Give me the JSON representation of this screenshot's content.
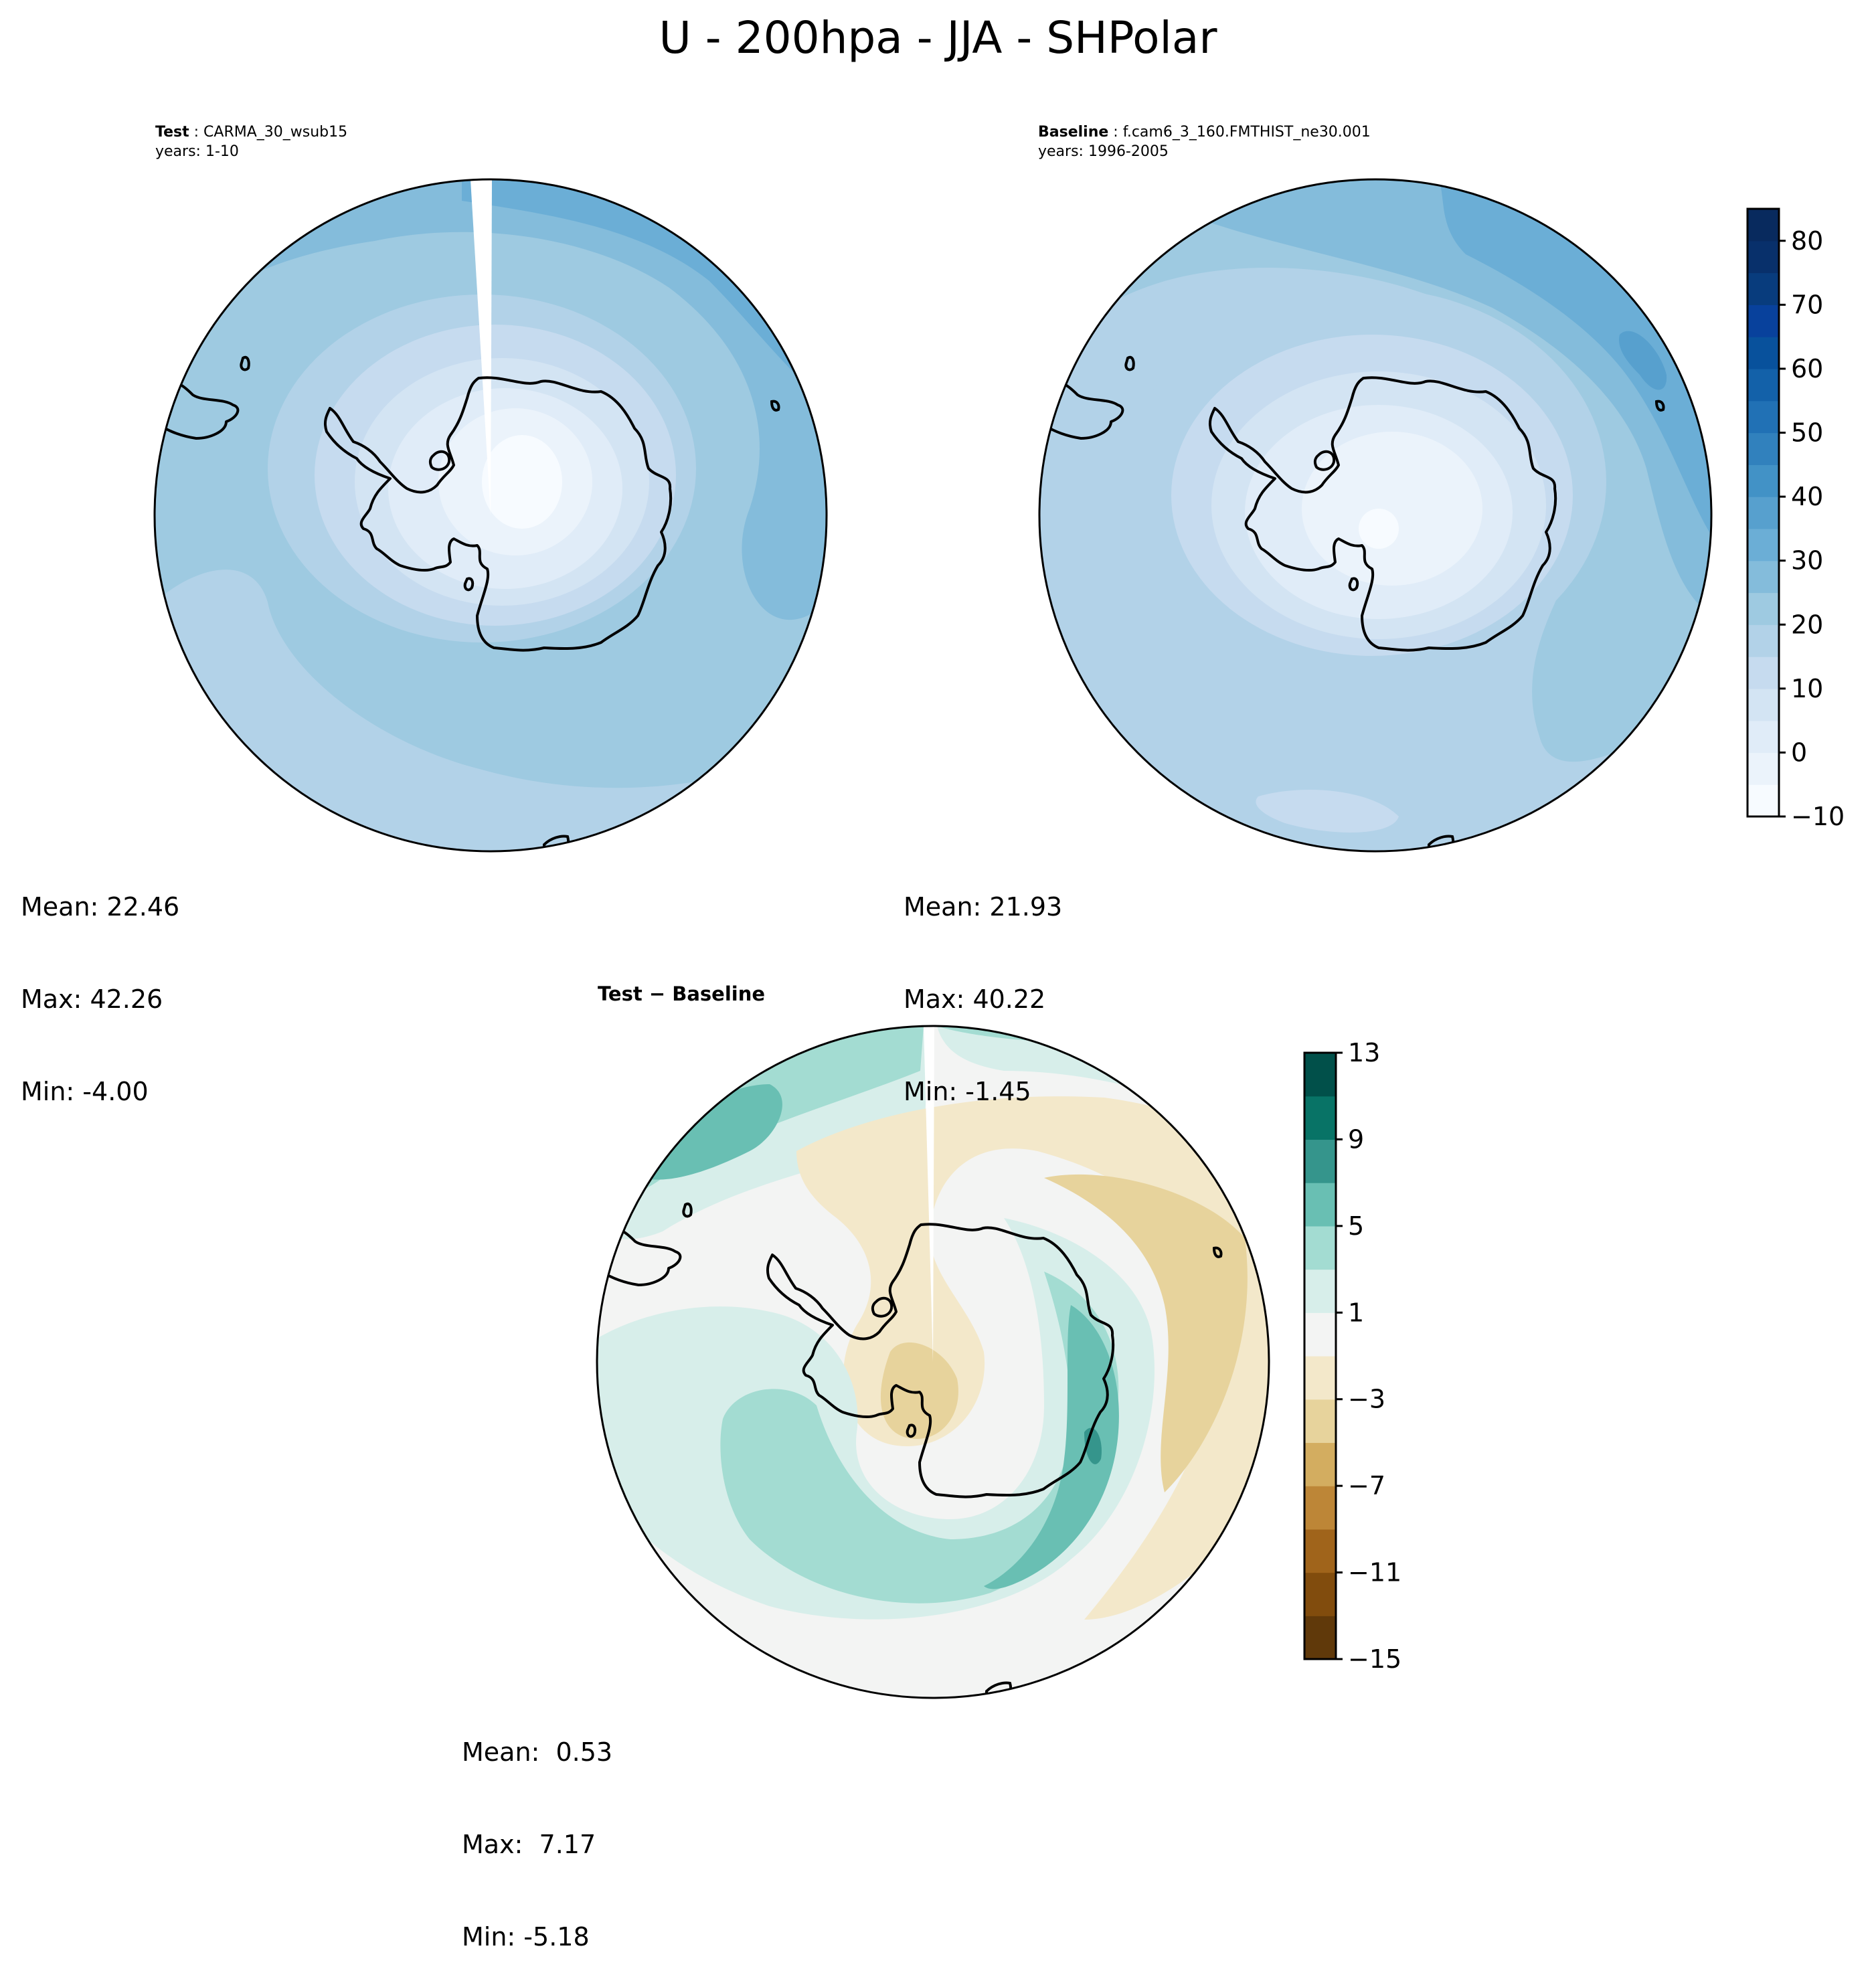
{
  "title": "U - 200hpa - JJA - SHPolar",
  "panels": {
    "test": {
      "label": "Test",
      "case": "CARMA_30_wsub15",
      "years": "years: 1-10",
      "mean": "Mean: 22.46",
      "max": "Max: 42.26",
      "min": "Min: -4.00"
    },
    "baseline": {
      "label": "Baseline",
      "case": "f.cam6_3_160.FMTHIST_ne30.001",
      "years": "years: 1996-2005",
      "mean": "Mean: 21.93",
      "max": "Max: 40.22",
      "min": "Min: -1.45"
    },
    "diff": {
      "title_a": "Test",
      "title_sep": " − ",
      "title_b": "Baseline",
      "mean": "Mean:  0.53",
      "max": "Max:  7.17",
      "min": "Min: -5.18"
    }
  },
  "colorbars": {
    "main": {
      "range": [
        -10,
        85
      ],
      "step": 5,
      "ticks": [
        -10,
        0,
        10,
        20,
        30,
        40,
        50,
        60,
        70,
        80
      ],
      "tick_labels": [
        "−10",
        "0",
        "10",
        "20",
        "30",
        "40",
        "50",
        "60",
        "70",
        "80"
      ],
      "colors": [
        "#f7fbff",
        "#ebf3fb",
        "#e0ecf8",
        "#d3e4f3",
        "#c6dbef",
        "#b2d2e8",
        "#9ecae1",
        "#84bcdb",
        "#6baed6",
        "#57a0ce",
        "#4292c6",
        "#3181bd",
        "#2171b5",
        "#1361a9",
        "#08519c",
        "#08419c",
        "#083c7d",
        "#08306b",
        "#082a5e"
      ]
    },
    "diff": {
      "range": [
        -15,
        13
      ],
      "step": 2,
      "ticks": [
        -15,
        -11,
        -7,
        -3,
        1,
        5,
        9,
        13
      ],
      "tick_labels": [
        "−15",
        "−11",
        "−7",
        "−3",
        "1",
        "5",
        "9",
        "13"
      ],
      "colors": [
        "#60390a",
        "#814c0d",
        "#a0641b",
        "#bd8637",
        "#d3ad60",
        "#e7d39c",
        "#f3e8ca",
        "#f3f4f3",
        "#d7eeea",
        "#a3dcd2",
        "#69bfb3",
        "#35958c",
        "#087366",
        "#01504a"
      ]
    }
  },
  "chart_data": [
    {
      "type": "heatmap",
      "title": "Test : CARMA_30_wsub15",
      "subtitle": "years: 1-10",
      "projection": "south polar stereographic",
      "variable": "U",
      "level": "200hpa",
      "season": "JJA",
      "colormap": "Blues",
      "vrange": [
        -10,
        85
      ],
      "field_summary": {
        "mean": 22.46,
        "max": 42.26,
        "min": -4.0
      },
      "contour_levels": [
        -5,
        0,
        5,
        10,
        15,
        20,
        25,
        30,
        35,
        40
      ],
      "missing_meridian_sector": true
    },
    {
      "type": "heatmap",
      "title": "Baseline : f.cam6_3_160.FMTHIST_ne30.001",
      "subtitle": "years: 1996-2005",
      "projection": "south polar stereographic",
      "variable": "U",
      "level": "200hpa",
      "season": "JJA",
      "colormap": "Blues",
      "vrange": [
        -10,
        85
      ],
      "field_summary": {
        "mean": 21.93,
        "max": 40.22,
        "min": -1.45
      },
      "contour_levels": [
        0,
        5,
        10,
        15,
        20,
        25,
        30,
        35,
        40
      ]
    },
    {
      "type": "heatmap",
      "title": "Test − Baseline",
      "projection": "south polar stereographic",
      "colormap": "BrBG",
      "vrange": [
        -15,
        13
      ],
      "field_summary": {
        "mean": 0.53,
        "max": 7.17,
        "min": -5.18
      },
      "contour_levels": [
        -5,
        -3,
        -1,
        1,
        3,
        5,
        7
      ],
      "missing_meridian_sector": true
    }
  ]
}
